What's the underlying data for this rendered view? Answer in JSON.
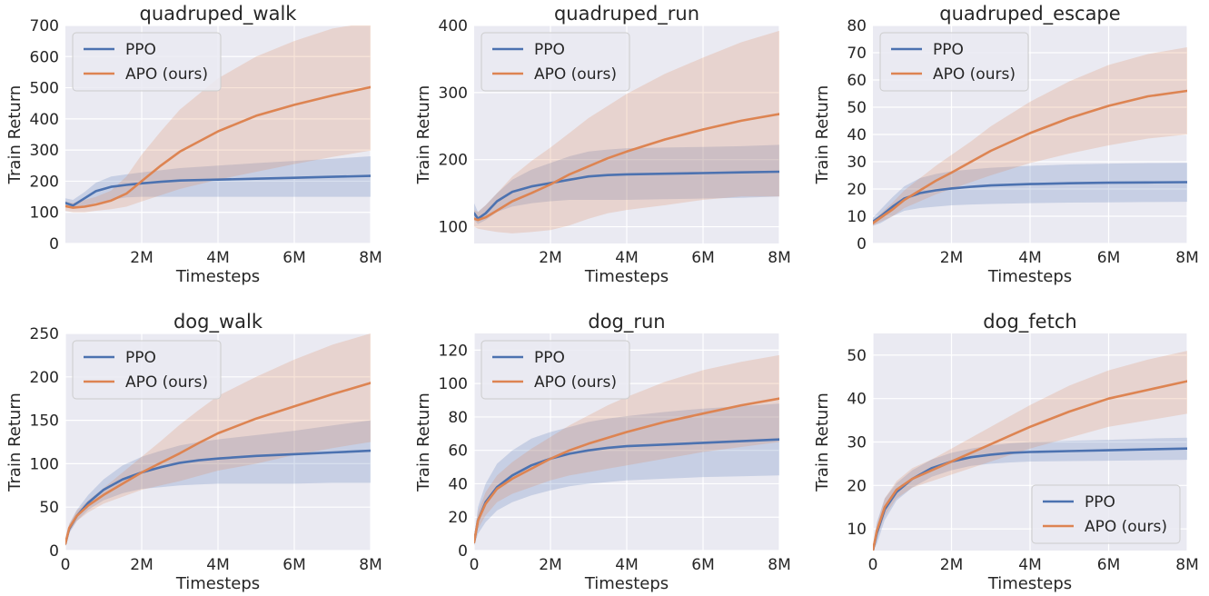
{
  "colors": {
    "ppo": "#4c72b0",
    "apo": "#dd8452",
    "panel_bg": "#eaeaf2",
    "grid": "#ffffff"
  },
  "chart_data": [
    {
      "type": "line",
      "title": "quadruped_walk",
      "xlabel": "Timesteps",
      "ylabel": "Train Return",
      "xlim": [
        0,
        8
      ],
      "ylim": [
        0,
        700
      ],
      "xticks": [
        2,
        4,
        6,
        8
      ],
      "xtick_labels": [
        "2M",
        "4M",
        "6M",
        "8M"
      ],
      "yticks": [
        0,
        100,
        200,
        300,
        400,
        500,
        600,
        700
      ],
      "grid": true,
      "legend_loc": "upper-left",
      "legend": [
        "PPO",
        "APO (ours)"
      ],
      "series": [
        {
          "name": "PPO",
          "color": "#4c72b0",
          "x": [
            0,
            0.2,
            0.5,
            0.8,
            1.2,
            1.6,
            2,
            2.5,
            3,
            4,
            5,
            6,
            7,
            8
          ],
          "y": [
            130,
            122,
            145,
            168,
            182,
            188,
            193,
            198,
            202,
            205,
            208,
            211,
            214,
            217
          ],
          "lower": [
            118,
            112,
            120,
            130,
            140,
            148,
            150,
            150,
            150,
            150,
            150,
            150,
            150,
            150
          ],
          "upper": [
            145,
            140,
            165,
            195,
            215,
            222,
            228,
            235,
            242,
            250,
            258,
            265,
            272,
            280
          ]
        },
        {
          "name": "APO (ours)",
          "color": "#dd8452",
          "x": [
            0,
            0.2,
            0.5,
            0.8,
            1.2,
            1.6,
            2,
            2.5,
            3,
            4,
            5,
            6,
            7,
            8
          ],
          "y": [
            120,
            115,
            118,
            125,
            138,
            160,
            200,
            250,
            295,
            360,
            410,
            445,
            475,
            502
          ],
          "lower": [
            105,
            100,
            100,
            105,
            110,
            118,
            135,
            155,
            175,
            205,
            230,
            255,
            278,
            298
          ],
          "upper": [
            135,
            130,
            140,
            150,
            170,
            215,
            285,
            360,
            430,
            530,
            600,
            650,
            690,
            710
          ]
        }
      ]
    },
    {
      "type": "line",
      "title": "quadruped_run",
      "xlabel": "Timesteps",
      "ylabel": "Train Return",
      "xlim": [
        0,
        8
      ],
      "ylim": [
        75,
        400
      ],
      "xticks": [
        2,
        4,
        6,
        8
      ],
      "xtick_labels": [
        "2M",
        "4M",
        "6M",
        "8M"
      ],
      "yticks": [
        100,
        200,
        300,
        400
      ],
      "grid": true,
      "legend_loc": "upper-left",
      "legend": [
        "PPO",
        "APO (ours)"
      ],
      "series": [
        {
          "name": "PPO",
          "color": "#4c72b0",
          "x": [
            0,
            0.1,
            0.3,
            0.6,
            1,
            1.5,
            2,
            2.5,
            3,
            3.5,
            4,
            5,
            6,
            7,
            8
          ],
          "y": [
            120,
            112,
            120,
            138,
            152,
            160,
            165,
            170,
            175,
            177,
            178,
            179,
            180,
            181,
            182
          ],
          "lower": [
            110,
            104,
            110,
            122,
            130,
            135,
            138,
            140,
            140,
            140,
            140,
            141,
            142,
            143,
            145
          ],
          "upper": [
            135,
            122,
            132,
            150,
            170,
            185,
            195,
            205,
            212,
            215,
            217,
            218,
            219,
            220,
            222
          ]
        },
        {
          "name": "APO (ours)",
          "color": "#dd8452",
          "x": [
            0,
            0.1,
            0.3,
            0.6,
            1,
            1.5,
            2,
            2.5,
            3,
            3.5,
            4,
            5,
            6,
            7,
            8
          ],
          "y": [
            112,
            110,
            114,
            124,
            138,
            150,
            163,
            178,
            190,
            202,
            212,
            230,
            245,
            258,
            268
          ],
          "lower": [
            100,
            97,
            95,
            92,
            90,
            92,
            95,
            102,
            112,
            120,
            125,
            132,
            140,
            145,
            145
          ],
          "upper": [
            125,
            122,
            132,
            150,
            175,
            198,
            218,
            240,
            262,
            280,
            298,
            328,
            352,
            375,
            392
          ]
        }
      ]
    },
    {
      "type": "line",
      "title": "quadruped_escape",
      "xlabel": "Timesteps",
      "ylabel": "Train Return",
      "xlim": [
        0,
        8
      ],
      "ylim": [
        0,
        80
      ],
      "xticks": [
        2,
        4,
        6,
        8
      ],
      "xtick_labels": [
        "2M",
        "4M",
        "6M",
        "8M"
      ],
      "yticks": [
        0,
        10,
        20,
        30,
        40,
        50,
        60,
        70,
        80
      ],
      "grid": true,
      "legend_loc": "upper-left",
      "legend": [
        "PPO",
        "APO (ours)"
      ],
      "series": [
        {
          "name": "PPO",
          "color": "#4c72b0",
          "x": [
            0,
            0.2,
            0.5,
            0.8,
            1.2,
            1.6,
            2,
            2.5,
            3,
            4,
            5,
            6,
            7,
            8
          ],
          "y": [
            8,
            10,
            13.5,
            16.5,
            18.5,
            19.5,
            20.2,
            20.8,
            21.3,
            21.8,
            22.1,
            22.3,
            22.4,
            22.5
          ],
          "lower": [
            6.5,
            7.5,
            10,
            12,
            13,
            13.5,
            14,
            14.3,
            14.5,
            14.8,
            15,
            15.1,
            15.2,
            15.3
          ],
          "upper": [
            9.5,
            12.5,
            17,
            21,
            24,
            25.5,
            26.5,
            27.2,
            27.8,
            28.5,
            29,
            29.3,
            29.5,
            29.6
          ]
        },
        {
          "name": "APO (ours)",
          "color": "#dd8452",
          "x": [
            0,
            0.2,
            0.5,
            0.8,
            1.2,
            1.6,
            2,
            2.5,
            3,
            4,
            5,
            6,
            7,
            8
          ],
          "y": [
            7.5,
            9.5,
            12.5,
            16,
            19.5,
            23,
            26,
            30,
            34,
            40.5,
            46,
            50.5,
            54,
            56
          ],
          "lower": [
            6.5,
            8,
            10,
            13,
            15.5,
            18,
            20,
            22.5,
            25,
            29.5,
            33,
            36,
            38.5,
            40
          ],
          "upper": [
            8.5,
            11,
            15,
            19.5,
            24,
            28.5,
            32.5,
            37.5,
            43,
            52,
            59.5,
            65.5,
            69.5,
            72
          ]
        }
      ]
    },
    {
      "type": "line",
      "title": "dog_walk",
      "xlabel": "Timesteps",
      "ylabel": "Train Return",
      "xlim": [
        0,
        8
      ],
      "ylim": [
        0,
        250
      ],
      "xticks": [
        0,
        2,
        4,
        6,
        8
      ],
      "xtick_labels": [
        "0",
        "2M",
        "4M",
        "6M",
        "8M"
      ],
      "yticks": [
        0,
        50,
        100,
        150,
        200,
        250
      ],
      "grid": true,
      "legend_loc": "upper-left",
      "legend": [
        "PPO",
        "APO (ours)"
      ],
      "series": [
        {
          "name": "PPO",
          "color": "#4c72b0",
          "x": [
            0,
            0.1,
            0.3,
            0.6,
            1,
            1.5,
            2,
            2.5,
            3,
            3.5,
            4,
            5,
            6,
            7,
            8
          ],
          "y": [
            8,
            25,
            40,
            55,
            70,
            82,
            90,
            96,
            101,
            104,
            106,
            109,
            111,
            113,
            115
          ],
          "lower": [
            5,
            20,
            34,
            47,
            58,
            66,
            71,
            73,
            75,
            76,
            77,
            77,
            77,
            78,
            78
          ],
          "upper": [
            12,
            30,
            47,
            64,
            82,
            98,
            108,
            115,
            121,
            125,
            128,
            133,
            138,
            144,
            150
          ]
        },
        {
          "name": "APO (ours)",
          "color": "#dd8452",
          "x": [
            0,
            0.1,
            0.3,
            0.6,
            1,
            1.5,
            2,
            2.5,
            3,
            3.5,
            4,
            5,
            6,
            7,
            8
          ],
          "y": [
            8,
            26,
            40,
            52,
            64,
            77,
            90,
            101,
            112,
            124,
            135,
            152,
            166,
            180,
            193
          ],
          "lower": [
            5,
            21,
            34,
            44,
            54,
            62,
            70,
            75,
            80,
            86,
            92,
            100,
            110,
            118,
            125
          ],
          "upper": [
            12,
            31,
            46,
            58,
            72,
            90,
            108,
            126,
            145,
            162,
            178,
            200,
            220,
            237,
            250
          ]
        }
      ]
    },
    {
      "type": "line",
      "title": "dog_run",
      "xlabel": "Timesteps",
      "ylabel": "Train Return",
      "xlim": [
        0,
        8
      ],
      "ylim": [
        0,
        130
      ],
      "xticks": [
        0,
        2,
        4,
        6,
        8
      ],
      "xtick_labels": [
        "0",
        "2M",
        "4M",
        "6M",
        "8M"
      ],
      "yticks": [
        0,
        20,
        40,
        60,
        80,
        100,
        120
      ],
      "grid": true,
      "legend_loc": "upper-left",
      "legend": [
        "PPO",
        "APO (ours)"
      ],
      "series": [
        {
          "name": "PPO",
          "color": "#4c72b0",
          "x": [
            0,
            0.1,
            0.3,
            0.6,
            1,
            1.5,
            2,
            2.5,
            3,
            3.5,
            4,
            5,
            6,
            7,
            8
          ],
          "y": [
            5,
            18,
            29,
            38,
            45,
            51,
            55,
            58,
            60,
            61.5,
            62.5,
            63.5,
            64.5,
            65.5,
            66.5
          ],
          "lower": [
            3,
            10,
            17,
            24,
            29,
            33,
            36,
            38.5,
            40,
            41,
            42,
            43,
            44,
            44.5,
            45
          ],
          "upper": [
            8,
            26,
            40,
            52,
            60,
            67,
            71,
            74,
            77,
            79,
            80.5,
            83,
            85,
            86.5,
            88
          ]
        },
        {
          "name": "APO (ours)",
          "color": "#dd8452",
          "x": [
            0,
            0.1,
            0.3,
            0.6,
            1,
            1.5,
            2,
            2.5,
            3,
            3.5,
            4,
            5,
            6,
            7,
            8
          ],
          "y": [
            5,
            18,
            28,
            37,
            43,
            49,
            55,
            60,
            64,
            67.5,
            71,
            77,
            82,
            87,
            91
          ],
          "lower": [
            3,
            13,
            21,
            29,
            34,
            38,
            42,
            45,
            47,
            49,
            51,
            55,
            59,
            62,
            65
          ],
          "upper": [
            8,
            23,
            35,
            45,
            53,
            61,
            68,
            75,
            81,
            87,
            92,
            101,
            108,
            113,
            117
          ]
        }
      ]
    },
    {
      "type": "line",
      "title": "dog_fetch",
      "xlabel": "Timesteps",
      "ylabel": "Train Return",
      "xlim": [
        0,
        8
      ],
      "ylim": [
        5,
        55
      ],
      "xticks": [
        0,
        2,
        4,
        6,
        8
      ],
      "xtick_labels": [
        "0",
        "2M",
        "4M",
        "6M",
        "8M"
      ],
      "yticks": [
        10,
        20,
        30,
        40,
        50
      ],
      "grid": true,
      "legend_loc": "lower-right",
      "legend": [
        "PPO",
        "APO (ours)"
      ],
      "series": [
        {
          "name": "PPO",
          "color": "#4c72b0",
          "x": [
            0,
            0.1,
            0.3,
            0.6,
            1,
            1.5,
            2,
            2.5,
            3,
            3.5,
            4,
            5,
            6,
            7,
            8
          ],
          "y": [
            5,
            9,
            14.5,
            18.5,
            21.5,
            24,
            25.5,
            26.5,
            27.1,
            27.5,
            27.7,
            27.9,
            28.1,
            28.3,
            28.5
          ],
          "lower": [
            5,
            6.5,
            12,
            16.5,
            19.5,
            22,
            23.5,
            24.5,
            25,
            25.3,
            25.5,
            25.6,
            25.7,
            25.8,
            25.9
          ],
          "upper": [
            6,
            11.5,
            17,
            20.5,
            23.5,
            26,
            27.5,
            28.5,
            29.2,
            29.7,
            30,
            30.3,
            30.5,
            30.8,
            31
          ]
        },
        {
          "name": "APO (ours)",
          "color": "#dd8452",
          "x": [
            0,
            0.1,
            0.3,
            0.6,
            1,
            1.5,
            2,
            2.5,
            3,
            3.5,
            4,
            5,
            6,
            7,
            8
          ],
          "y": [
            5,
            9.5,
            15,
            19,
            21.5,
            23.5,
            25.5,
            27.5,
            29.5,
            31.5,
            33.5,
            37,
            40,
            42,
            44
          ],
          "lower": [
            5,
            8,
            13,
            17,
            19.5,
            21,
            22.5,
            24,
            25.5,
            27,
            28.5,
            31,
            33.5,
            35,
            36.5
          ],
          "upper": [
            6,
            11,
            17,
            21,
            24,
            26,
            28.5,
            31,
            33.5,
            36,
            38.5,
            43,
            46.5,
            49,
            51
          ]
        }
      ]
    }
  ]
}
